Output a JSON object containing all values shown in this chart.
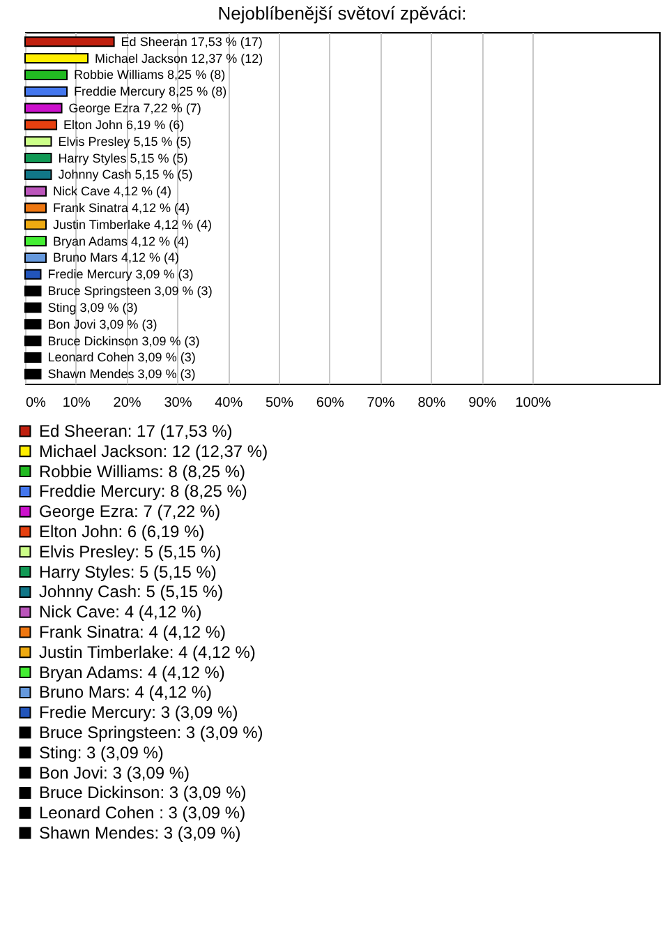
{
  "chart_data": {
    "type": "bar",
    "orientation": "horizontal",
    "title": "Nejoblíbenější světoví zpěváci:",
    "categories": [
      "Ed Sheeran",
      "Michael Jackson",
      "Robbie Williams",
      "Freddie Mercury",
      "George Ezra",
      "Elton John",
      "Elvis Presley",
      "Harry Styles",
      "Johnny Cash",
      "Nick Cave",
      "Frank Sinatra",
      "Justin Timberlake",
      "Bryan Adams",
      "Bruno Mars",
      "Fredie Mercury",
      "Bruce Springsteen",
      "Sting",
      "Bon Jovi",
      "Bruce Dickinson",
      "Leonard Cohen",
      "Shawn Mendes"
    ],
    "series": [
      {
        "name": "Ed Sheeran: 17 (17,53 %)",
        "color": "#c0200f",
        "values": [
          17.53,
          null,
          null,
          null,
          null,
          null,
          null,
          null,
          null,
          null,
          null,
          null,
          null,
          null,
          null,
          null,
          null,
          null,
          null,
          null,
          null
        ],
        "value_labels": [
          "17,53 % (17)",
          null,
          null,
          null,
          null,
          null,
          null,
          null,
          null,
          null,
          null,
          null,
          null,
          null,
          null,
          null,
          null,
          null,
          null,
          null,
          null
        ]
      },
      {
        "name": "Michael Jackson: 12 (12,37 %)",
        "color": "#ffee00",
        "values": [
          null,
          12.37,
          null,
          null,
          null,
          null,
          null,
          null,
          null,
          null,
          null,
          null,
          null,
          null,
          null,
          null,
          null,
          null,
          null,
          null,
          null
        ],
        "value_labels": [
          null,
          "12,37 % (12)",
          null,
          null,
          null,
          null,
          null,
          null,
          null,
          null,
          null,
          null,
          null,
          null,
          null,
          null,
          null,
          null,
          null,
          null,
          null
        ]
      },
      {
        "name": "Robbie Williams: 8 (8,25 %)",
        "color": "#22bb22",
        "values": [
          null,
          null,
          8.25,
          null,
          null,
          null,
          null,
          null,
          null,
          null,
          null,
          null,
          null,
          null,
          null,
          null,
          null,
          null,
          null,
          null,
          null
        ],
        "value_labels": [
          null,
          null,
          "8,25 % (8)",
          null,
          null,
          null,
          null,
          null,
          null,
          null,
          null,
          null,
          null,
          null,
          null,
          null,
          null,
          null,
          null,
          null,
          null
        ]
      },
      {
        "name": "Freddie Mercury: 8 (8,25 %)",
        "color": "#4477ee",
        "values": [
          null,
          null,
          null,
          8.25,
          null,
          null,
          null,
          null,
          null,
          null,
          null,
          null,
          null,
          null,
          null,
          null,
          null,
          null,
          null,
          null,
          null
        ],
        "value_labels": [
          null,
          null,
          null,
          "8,25 % (8)",
          null,
          null,
          null,
          null,
          null,
          null,
          null,
          null,
          null,
          null,
          null,
          null,
          null,
          null,
          null,
          null,
          null
        ]
      },
      {
        "name": "George Ezra: 7 (7,22 %)",
        "color": "#cc11cc",
        "values": [
          null,
          null,
          null,
          null,
          7.22,
          null,
          null,
          null,
          null,
          null,
          null,
          null,
          null,
          null,
          null,
          null,
          null,
          null,
          null,
          null,
          null
        ],
        "value_labels": [
          null,
          null,
          null,
          null,
          "7,22 % (7)",
          null,
          null,
          null,
          null,
          null,
          null,
          null,
          null,
          null,
          null,
          null,
          null,
          null,
          null,
          null,
          null
        ]
      },
      {
        "name": "Elton John: 6 (6,19 %)",
        "color": "#e64010",
        "values": [
          null,
          null,
          null,
          null,
          null,
          6.19,
          null,
          null,
          null,
          null,
          null,
          null,
          null,
          null,
          null,
          null,
          null,
          null,
          null,
          null,
          null
        ],
        "value_labels": [
          null,
          null,
          null,
          null,
          null,
          "6,19 % (6)",
          null,
          null,
          null,
          null,
          null,
          null,
          null,
          null,
          null,
          null,
          null,
          null,
          null,
          null,
          null
        ]
      },
      {
        "name": "Elvis Presley: 5 (5,15 %)",
        "color": "#ccff88",
        "values": [
          null,
          null,
          null,
          null,
          null,
          null,
          5.15,
          null,
          null,
          null,
          null,
          null,
          null,
          null,
          null,
          null,
          null,
          null,
          null,
          null,
          null
        ],
        "value_labels": [
          null,
          null,
          null,
          null,
          null,
          null,
          "5,15 % (5)",
          null,
          null,
          null,
          null,
          null,
          null,
          null,
          null,
          null,
          null,
          null,
          null,
          null,
          null
        ]
      },
      {
        "name": "Harry Styles: 5 (5,15 %)",
        "color": "#119955",
        "values": [
          null,
          null,
          null,
          null,
          null,
          null,
          null,
          5.15,
          null,
          null,
          null,
          null,
          null,
          null,
          null,
          null,
          null,
          null,
          null,
          null,
          null
        ],
        "value_labels": [
          null,
          null,
          null,
          null,
          null,
          null,
          null,
          "5,15 % (5)",
          null,
          null,
          null,
          null,
          null,
          null,
          null,
          null,
          null,
          null,
          null,
          null,
          null
        ]
      },
      {
        "name": "Johnny Cash: 5 (5,15 %)",
        "color": "#117788",
        "values": [
          null,
          null,
          null,
          null,
          null,
          null,
          null,
          null,
          5.15,
          null,
          null,
          null,
          null,
          null,
          null,
          null,
          null,
          null,
          null,
          null,
          null
        ],
        "value_labels": [
          null,
          null,
          null,
          null,
          null,
          null,
          null,
          null,
          "5,15 % (5)",
          null,
          null,
          null,
          null,
          null,
          null,
          null,
          null,
          null,
          null,
          null,
          null
        ]
      },
      {
        "name": "Nick Cave: 4 (4,12 %)",
        "color": "#bb55bb",
        "values": [
          null,
          null,
          null,
          null,
          null,
          null,
          null,
          null,
          null,
          4.12,
          null,
          null,
          null,
          null,
          null,
          null,
          null,
          null,
          null,
          null,
          null
        ],
        "value_labels": [
          null,
          null,
          null,
          null,
          null,
          null,
          null,
          null,
          null,
          "4,12 % (4)",
          null,
          null,
          null,
          null,
          null,
          null,
          null,
          null,
          null,
          null,
          null
        ]
      },
      {
        "name": "Frank Sinatra: 4 (4,12 %)",
        "color": "#ee7711",
        "values": [
          null,
          null,
          null,
          null,
          null,
          null,
          null,
          null,
          null,
          null,
          4.12,
          null,
          null,
          null,
          null,
          null,
          null,
          null,
          null,
          null,
          null
        ],
        "value_labels": [
          null,
          null,
          null,
          null,
          null,
          null,
          null,
          null,
          null,
          null,
          "4,12 % (4)",
          null,
          null,
          null,
          null,
          null,
          null,
          null,
          null,
          null,
          null
        ]
      },
      {
        "name": "Justin Timberlake: 4 (4,12 %)",
        "color": "#eeaa11",
        "values": [
          null,
          null,
          null,
          null,
          null,
          null,
          null,
          null,
          null,
          null,
          null,
          4.12,
          null,
          null,
          null,
          null,
          null,
          null,
          null,
          null,
          null
        ],
        "value_labels": [
          null,
          null,
          null,
          null,
          null,
          null,
          null,
          null,
          null,
          null,
          null,
          "4,12 % (4)",
          null,
          null,
          null,
          null,
          null,
          null,
          null,
          null,
          null
        ]
      },
      {
        "name": "Bryan Adams: 4 (4,12 %)",
        "color": "#44ee33",
        "values": [
          null,
          null,
          null,
          null,
          null,
          null,
          null,
          null,
          null,
          null,
          null,
          null,
          4.12,
          null,
          null,
          null,
          null,
          null,
          null,
          null,
          null
        ],
        "value_labels": [
          null,
          null,
          null,
          null,
          null,
          null,
          null,
          null,
          null,
          null,
          null,
          null,
          "4,12 % (4)",
          null,
          null,
          null,
          null,
          null,
          null,
          null,
          null
        ]
      },
      {
        "name": "Bruno Mars: 4 (4,12 %)",
        "color": "#6699dd",
        "values": [
          null,
          null,
          null,
          null,
          null,
          null,
          null,
          null,
          null,
          null,
          null,
          null,
          null,
          4.12,
          null,
          null,
          null,
          null,
          null,
          null,
          null
        ],
        "value_labels": [
          null,
          null,
          null,
          null,
          null,
          null,
          null,
          null,
          null,
          null,
          null,
          null,
          null,
          "4,12 % (4)",
          null,
          null,
          null,
          null,
          null,
          null,
          null
        ]
      },
      {
        "name": "Fredie Mercury: 3 (3,09 %)",
        "color": "#2255bb",
        "values": [
          null,
          null,
          null,
          null,
          null,
          null,
          null,
          null,
          null,
          null,
          null,
          null,
          null,
          null,
          3.09,
          null,
          null,
          null,
          null,
          null,
          null
        ],
        "value_labels": [
          null,
          null,
          null,
          null,
          null,
          null,
          null,
          null,
          null,
          null,
          null,
          null,
          null,
          null,
          "3,09 % (3)",
          null,
          null,
          null,
          null,
          null,
          null
        ]
      },
      {
        "name": "Bruce Springsteen: 3 (3,09 %)",
        "color": "#000000",
        "values": [
          null,
          null,
          null,
          null,
          null,
          null,
          null,
          null,
          null,
          null,
          null,
          null,
          null,
          null,
          null,
          3.09,
          null,
          null,
          null,
          null,
          null
        ],
        "value_labels": [
          null,
          null,
          null,
          null,
          null,
          null,
          null,
          null,
          null,
          null,
          null,
          null,
          null,
          null,
          null,
          "3,09 % (3)",
          null,
          null,
          null,
          null,
          null
        ]
      },
      {
        "name": "Sting: 3 (3,09 %)",
        "color": "#000000",
        "values": [
          null,
          null,
          null,
          null,
          null,
          null,
          null,
          null,
          null,
          null,
          null,
          null,
          null,
          null,
          null,
          null,
          3.09,
          null,
          null,
          null,
          null
        ],
        "value_labels": [
          null,
          null,
          null,
          null,
          null,
          null,
          null,
          null,
          null,
          null,
          null,
          null,
          null,
          null,
          null,
          null,
          "3,09 % (3)",
          null,
          null,
          null,
          null
        ]
      },
      {
        "name": "Bon Jovi: 3 (3,09 %)",
        "color": "#000000",
        "values": [
          null,
          null,
          null,
          null,
          null,
          null,
          null,
          null,
          null,
          null,
          null,
          null,
          null,
          null,
          null,
          null,
          null,
          3.09,
          null,
          null,
          null
        ],
        "value_labels": [
          null,
          null,
          null,
          null,
          null,
          null,
          null,
          null,
          null,
          null,
          null,
          null,
          null,
          null,
          null,
          null,
          null,
          "3,09 % (3)",
          null,
          null,
          null
        ]
      },
      {
        "name": "Bruce Dickinson: 3 (3,09 %)",
        "color": "#000000",
        "values": [
          null,
          null,
          null,
          null,
          null,
          null,
          null,
          null,
          null,
          null,
          null,
          null,
          null,
          null,
          null,
          null,
          null,
          null,
          3.09,
          null,
          null
        ],
        "value_labels": [
          null,
          null,
          null,
          null,
          null,
          null,
          null,
          null,
          null,
          null,
          null,
          null,
          null,
          null,
          null,
          null,
          null,
          null,
          "3,09 % (3)",
          null,
          null
        ]
      },
      {
        "name": "Leonard Cohen : 3 (3,09 %)",
        "color": "#000000",
        "values": [
          null,
          null,
          null,
          null,
          null,
          null,
          null,
          null,
          null,
          null,
          null,
          null,
          null,
          null,
          null,
          null,
          null,
          null,
          null,
          3.09,
          null
        ],
        "value_labels": [
          null,
          null,
          null,
          null,
          null,
          null,
          null,
          null,
          null,
          null,
          null,
          null,
          null,
          null,
          null,
          null,
          null,
          null,
          null,
          "3,09 % (3)",
          null
        ]
      },
      {
        "name": "Shawn Mendes: 3 (3,09 %)",
        "color": "#000000",
        "values": [
          null,
          null,
          null,
          null,
          null,
          null,
          null,
          null,
          null,
          null,
          null,
          null,
          null,
          null,
          null,
          null,
          null,
          null,
          null,
          null,
          3.09
        ],
        "value_labels": [
          null,
          null,
          null,
          null,
          null,
          null,
          null,
          null,
          null,
          null,
          null,
          null,
          null,
          null,
          null,
          null,
          null,
          null,
          null,
          null,
          "3,09 % (3)"
        ]
      }
    ],
    "xlim": [
      0,
      125
    ],
    "xticks": [
      {
        "value": 0,
        "label": "0%"
      },
      {
        "value": 10,
        "label": "10%"
      },
      {
        "value": 20,
        "label": "20%"
      },
      {
        "value": 30,
        "label": "30%"
      },
      {
        "value": 40,
        "label": "40%"
      },
      {
        "value": 50,
        "label": "50%"
      },
      {
        "value": 60,
        "label": "60%"
      },
      {
        "value": 70,
        "label": "70%"
      },
      {
        "value": 80,
        "label": "80%"
      },
      {
        "value": 90,
        "label": "90%"
      },
      {
        "value": 100,
        "label": "100%"
      }
    ],
    "grid": "x",
    "legend": "bottom",
    "tick_labels": "x"
  }
}
